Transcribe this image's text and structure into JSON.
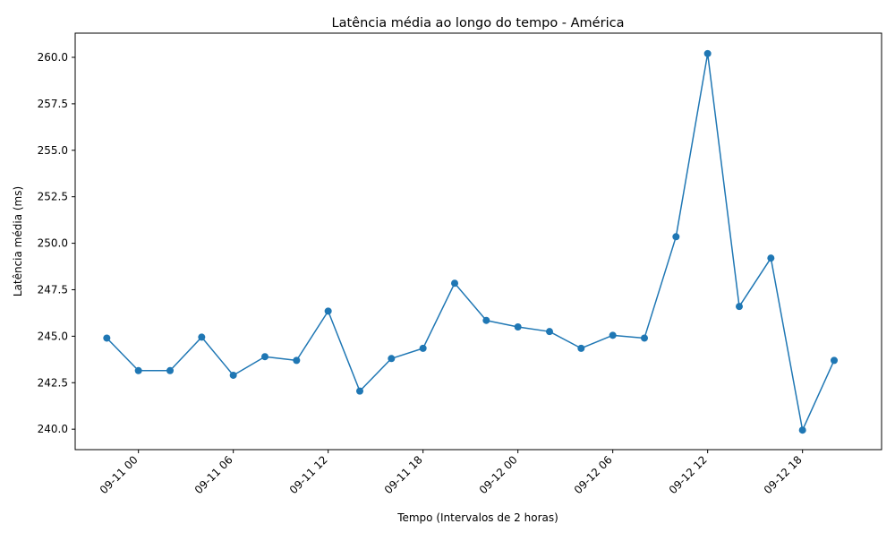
{
  "chart_data": {
    "type": "line",
    "title": "Latência média ao longo do tempo - América",
    "xlabel": "Tempo (Intervalos de 2 horas)",
    "ylabel": "Latência média (ms)",
    "x_ticks": [
      "09-11 00",
      "09-11 06",
      "09-11 12",
      "09-11 18",
      "09-12 00",
      "09-12 06",
      "09-12 12",
      "09-12 18"
    ],
    "y_ticks": [
      "240.0",
      "242.5",
      "245.0",
      "247.5",
      "250.0",
      "252.5",
      "255.0",
      "257.5",
      "260.0"
    ],
    "ylim": [
      238.9,
      261.3
    ],
    "xlim": [
      "2023-09-10 20:00",
      "2023-09-12 23:00"
    ],
    "grid": false,
    "legend": "none",
    "series": [
      {
        "color": "#1f77b4",
        "marker": "circle",
        "points": [
          {
            "x": "2023-09-10 22:00",
            "y": 244.9
          },
          {
            "x": "2023-09-11 00:00",
            "y": 243.15
          },
          {
            "x": "2023-09-11 02:00",
            "y": 243.15
          },
          {
            "x": "2023-09-11 04:00",
            "y": 244.95
          },
          {
            "x": "2023-09-11 06:00",
            "y": 242.9
          },
          {
            "x": "2023-09-11 08:00",
            "y": 243.9
          },
          {
            "x": "2023-09-11 10:00",
            "y": 243.7
          },
          {
            "x": "2023-09-11 12:00",
            "y": 246.35
          },
          {
            "x": "2023-09-11 14:00",
            "y": 242.05
          },
          {
            "x": "2023-09-11 16:00",
            "y": 243.8
          },
          {
            "x": "2023-09-11 18:00",
            "y": 244.35
          },
          {
            "x": "2023-09-11 20:00",
            "y": 247.85
          },
          {
            "x": "2023-09-11 22:00",
            "y": 245.85
          },
          {
            "x": "2023-09-12 00:00",
            "y": 245.5
          },
          {
            "x": "2023-09-12 02:00",
            "y": 245.25
          },
          {
            "x": "2023-09-12 04:00",
            "y": 244.35
          },
          {
            "x": "2023-09-12 06:00",
            "y": 245.05
          },
          {
            "x": "2023-09-12 08:00",
            "y": 244.9
          },
          {
            "x": "2023-09-12 10:00",
            "y": 250.35
          },
          {
            "x": "2023-09-12 12:00",
            "y": 260.2
          },
          {
            "x": "2023-09-12 14:00",
            "y": 246.6
          },
          {
            "x": "2023-09-12 16:00",
            "y": 249.2
          },
          {
            "x": "2023-09-12 18:00",
            "y": 239.95
          },
          {
            "x": "2023-09-12 20:00",
            "y": 243.7
          }
        ]
      }
    ]
  }
}
